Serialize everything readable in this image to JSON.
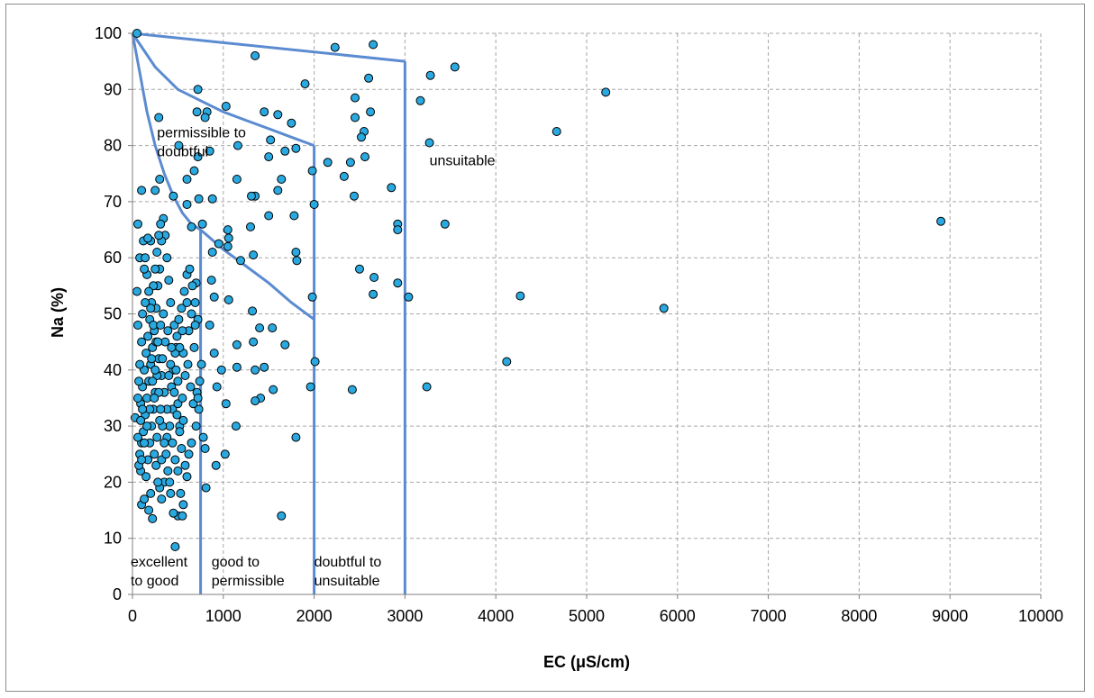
{
  "chart_data": {
    "type": "scatter",
    "title": "",
    "xlabel": "EC (μS/cm)",
    "ylabel": "Na (%)",
    "xlim": [
      0,
      10000
    ],
    "ylim": [
      0,
      100
    ],
    "x_ticks": [
      "0",
      "1000",
      "2000",
      "3000",
      "4000",
      "5000",
      "6000",
      "7000",
      "8000",
      "9000",
      "10000"
    ],
    "y_ticks": [
      "0",
      "10",
      "20",
      "30",
      "40",
      "50",
      "60",
      "70",
      "80",
      "90",
      "100"
    ],
    "grid": "dashed",
    "legend": "none",
    "marker_color": "#29a9e0",
    "marker_edge": "#000000",
    "boundary_color": "#5b8bd0",
    "zone_labels": [
      {
        "id": "excellent",
        "lines": [
          "excellent",
          "to good"
        ],
        "x": -20,
        "y": 5.0
      },
      {
        "id": "good",
        "lines": [
          "good to",
          "permissible"
        ],
        "x": 870,
        "y": 5.0
      },
      {
        "id": "doubtful",
        "lines": [
          "doubtful to",
          "unsuitable"
        ],
        "x": 2000,
        "y": 5.0
      },
      {
        "id": "permissible",
        "lines": [
          "permissible to",
          "doubtful"
        ],
        "x": 270,
        "y": 81.5
      },
      {
        "id": "unsuitable",
        "lines": [
          "unsuitable"
        ],
        "x": 3270,
        "y": 76.5
      }
    ],
    "boundaries": [
      {
        "name": "upper",
        "points": [
          [
            0,
            100
          ],
          [
            3000,
            95
          ]
        ]
      },
      {
        "name": "v3000",
        "points": [
          [
            3000,
            95
          ],
          [
            3000,
            0
          ]
        ]
      },
      {
        "name": "v2000",
        "points": [
          [
            2000,
            80
          ],
          [
            2000,
            0
          ]
        ]
      },
      {
        "name": "v750",
        "points": [
          [
            750,
            65
          ],
          [
            750,
            0
          ]
        ]
      },
      {
        "name": "curve80",
        "points": [
          [
            0,
            100
          ],
          [
            250,
            94
          ],
          [
            500,
            90
          ],
          [
            750,
            88
          ],
          [
            1000,
            86
          ],
          [
            1250,
            84.5
          ],
          [
            1500,
            83
          ],
          [
            1750,
            81.5
          ],
          [
            2000,
            80
          ]
        ]
      },
      {
        "name": "curve65",
        "points": [
          [
            0,
            100
          ],
          [
            80,
            93
          ],
          [
            160,
            86
          ],
          [
            250,
            80
          ],
          [
            350,
            75
          ],
          [
            450,
            71
          ],
          [
            550,
            68
          ],
          [
            650,
            66
          ],
          [
            750,
            65
          ]
        ]
      },
      {
        "name": "curve49",
        "points": [
          [
            750,
            65
          ],
          [
            1000,
            61.5
          ],
          [
            1250,
            58.5
          ],
          [
            1500,
            55.5
          ],
          [
            1750,
            52
          ],
          [
            2000,
            49
          ]
        ]
      }
    ],
    "points": [
      [
        50,
        100
      ],
      [
        2230,
        97.5
      ],
      [
        2650,
        98
      ],
      [
        1350,
        96
      ],
      [
        1900,
        91
      ],
      [
        2600,
        92
      ],
      [
        3280,
        92.5
      ],
      [
        3550,
        94
      ],
      [
        5210,
        89.5
      ],
      [
        1450,
        86
      ],
      [
        1600,
        85.5
      ],
      [
        1750,
        84
      ],
      [
        2450,
        88.5
      ],
      [
        2450,
        85
      ],
      [
        2620,
        86
      ],
      [
        3170,
        88
      ],
      [
        4670,
        82.5
      ],
      [
        3270,
        80.5
      ],
      [
        2550,
        82.5
      ],
      [
        2520,
        81.5
      ],
      [
        2150,
        77
      ],
      [
        2400,
        77
      ],
      [
        2330,
        74.5
      ],
      [
        2560,
        78
      ],
      [
        2440,
        71
      ],
      [
        2850,
        72.5
      ],
      [
        1980,
        75.5
      ],
      [
        1520,
        81
      ],
      [
        1500,
        78
      ],
      [
        1680,
        79
      ],
      [
        1800,
        79.5
      ],
      [
        1640,
        74
      ],
      [
        1600,
        72
      ],
      [
        1350,
        71
      ],
      [
        1310,
        71
      ],
      [
        1150,
        74
      ],
      [
        1160,
        80
      ],
      [
        1030,
        87
      ],
      [
        850,
        79
      ],
      [
        820,
        86
      ],
      [
        720,
        90
      ],
      [
        710,
        86
      ],
      [
        800,
        85
      ],
      [
        290,
        85
      ],
      [
        510,
        80
      ],
      [
        720,
        78
      ],
      [
        600,
        74
      ],
      [
        680,
        75.5
      ],
      [
        880,
        70.5
      ],
      [
        730,
        70.5
      ],
      [
        600,
        69.5
      ],
      [
        450,
        71
      ],
      [
        300,
        74
      ],
      [
        100,
        72
      ],
      [
        250,
        72
      ],
      [
        1780,
        67.5
      ],
      [
        1500,
        67.5
      ],
      [
        1300,
        65.5
      ],
      [
        2000,
        69.5
      ],
      [
        3440,
        66
      ],
      [
        2920,
        66
      ],
      [
        2920,
        65
      ],
      [
        8900,
        66.5
      ],
      [
        1050,
        65
      ],
      [
        1060,
        63.5
      ],
      [
        1050,
        62
      ],
      [
        950,
        62.5
      ],
      [
        1190,
        59.5
      ],
      [
        1330,
        60.5
      ],
      [
        1800,
        61
      ],
      [
        1810,
        59.5
      ],
      [
        880,
        61
      ],
      [
        770,
        66
      ],
      [
        650,
        65.5
      ],
      [
        700,
        55.5
      ],
      [
        1060,
        52.5
      ],
      [
        2660,
        56.5
      ],
      [
        2500,
        58
      ],
      [
        2920,
        55.5
      ],
      [
        2650,
        53.5
      ],
      [
        1980,
        53
      ],
      [
        3040,
        53
      ],
      [
        4270,
        53.2
      ],
      [
        5850,
        51
      ],
      [
        1320,
        50.5
      ],
      [
        1540,
        47.5
      ],
      [
        1680,
        44.5
      ],
      [
        1330,
        45
      ],
      [
        1400,
        47.5
      ],
      [
        1450,
        40.5
      ],
      [
        1350,
        40
      ],
      [
        1410,
        35
      ],
      [
        1350,
        34.5
      ],
      [
        1550,
        36.5
      ],
      [
        1150,
        40.5
      ],
      [
        1150,
        44.5
      ],
      [
        2010,
        41.5
      ],
      [
        1960,
        37
      ],
      [
        2420,
        36.5
      ],
      [
        3240,
        37
      ],
      [
        4120,
        41.5
      ],
      [
        1800,
        28
      ],
      [
        1640,
        14
      ],
      [
        1140,
        30
      ],
      [
        1020,
        25
      ],
      [
        930,
        37
      ],
      [
        1030,
        34
      ],
      [
        980,
        40
      ],
      [
        900,
        43
      ],
      [
        850,
        48
      ],
      [
        900,
        53
      ],
      [
        870,
        56
      ],
      [
        800,
        26
      ],
      [
        780,
        28
      ],
      [
        810,
        19
      ],
      [
        920,
        23
      ],
      [
        470,
        8.5
      ],
      [
        500,
        14
      ],
      [
        550,
        14
      ],
      [
        450,
        14.5
      ],
      [
        420,
        18
      ],
      [
        350,
        20
      ],
      [
        300,
        19
      ],
      [
        220,
        13.5
      ],
      [
        180,
        15
      ],
      [
        100,
        16
      ],
      [
        60,
        66
      ],
      [
        80,
        60
      ],
      [
        50,
        54
      ],
      [
        60,
        48
      ],
      [
        30,
        31.5
      ],
      [
        90,
        22
      ],
      [
        130,
        17
      ],
      [
        200,
        18
      ],
      [
        260,
        23
      ],
      [
        320,
        24
      ],
      [
        380,
        28
      ],
      [
        440,
        33
      ],
      [
        500,
        38
      ],
      [
        560,
        43
      ],
      [
        620,
        47
      ],
      [
        680,
        44
      ],
      [
        710,
        36
      ],
      [
        730,
        33
      ],
      [
        700,
        30
      ],
      [
        650,
        27
      ],
      [
        620,
        25
      ],
      [
        600,
        21
      ],
      [
        580,
        23
      ],
      [
        540,
        26
      ],
      [
        520,
        30
      ],
      [
        500,
        34
      ],
      [
        480,
        44
      ],
      [
        460,
        48
      ],
      [
        420,
        52
      ],
      [
        400,
        56
      ],
      [
        380,
        60
      ],
      [
        360,
        64
      ],
      [
        340,
        67
      ],
      [
        320,
        63
      ],
      [
        300,
        58
      ],
      [
        280,
        55
      ],
      [
        260,
        51
      ],
      [
        240,
        47
      ],
      [
        220,
        44
      ],
      [
        200,
        41
      ],
      [
        180,
        38
      ],
      [
        160,
        35
      ],
      [
        140,
        32
      ],
      [
        120,
        29
      ],
      [
        100,
        27
      ],
      [
        80,
        25
      ],
      [
        70,
        23
      ],
      [
        60,
        28
      ],
      [
        90,
        34
      ],
      [
        110,
        37
      ],
      [
        130,
        40
      ],
      [
        150,
        43
      ],
      [
        170,
        46
      ],
      [
        190,
        49
      ],
      [
        210,
        52
      ],
      [
        230,
        55
      ],
      [
        250,
        58
      ],
      [
        270,
        61
      ],
      [
        290,
        64
      ],
      [
        310,
        66
      ],
      [
        120,
        63
      ],
      [
        140,
        60
      ],
      [
        160,
        57
      ],
      [
        180,
        54
      ],
      [
        200,
        51
      ],
      [
        230,
        48
      ],
      [
        260,
        45
      ],
      [
        290,
        42
      ],
      [
        320,
        39
      ],
      [
        350,
        36
      ],
      [
        380,
        33
      ],
      [
        410,
        30
      ],
      [
        440,
        27
      ],
      [
        470,
        24
      ],
      [
        500,
        22
      ],
      [
        530,
        18
      ],
      [
        560,
        16
      ],
      [
        150,
        21
      ],
      [
        170,
        24
      ],
      [
        190,
        27
      ],
      [
        210,
        30
      ],
      [
        230,
        33
      ],
      [
        250,
        36
      ],
      [
        270,
        39
      ],
      [
        290,
        36
      ],
      [
        310,
        33
      ],
      [
        330,
        30
      ],
      [
        350,
        27
      ],
      [
        370,
        25
      ],
      [
        390,
        22
      ],
      [
        410,
        20
      ],
      [
        430,
        37
      ],
      [
        450,
        40
      ],
      [
        470,
        43
      ],
      [
        490,
        46
      ],
      [
        510,
        49
      ],
      [
        540,
        51
      ],
      [
        570,
        54
      ],
      [
        600,
        57
      ],
      [
        630,
        58
      ],
      [
        660,
        55
      ],
      [
        690,
        52
      ],
      [
        720,
        49
      ],
      [
        200,
        63
      ],
      [
        170,
        63.5
      ],
      [
        130,
        58
      ],
      [
        100,
        45
      ],
      [
        80,
        41
      ],
      [
        70,
        38
      ],
      [
        60,
        35
      ],
      [
        110,
        50
      ],
      [
        140,
        52
      ],
      [
        240,
        35
      ],
      [
        270,
        28
      ],
      [
        300,
        31
      ],
      [
        330,
        42
      ],
      [
        360,
        45
      ],
      [
        390,
        47
      ],
      [
        420,
        41
      ],
      [
        460,
        36
      ],
      [
        490,
        32
      ],
      [
        520,
        29
      ],
      [
        550,
        35
      ],
      [
        580,
        39
      ],
      [
        610,
        41
      ],
      [
        640,
        37
      ],
      [
        670,
        34
      ],
      [
        560,
        31
      ],
      [
        400,
        39
      ],
      [
        430,
        44
      ],
      [
        340,
        50
      ],
      [
        310,
        48
      ],
      [
        280,
        45
      ],
      [
        250,
        40
      ],
      [
        220,
        38
      ],
      [
        190,
        33
      ],
      [
        160,
        30
      ],
      [
        130,
        27
      ],
      [
        100,
        24
      ],
      [
        90,
        31
      ],
      [
        110,
        33
      ],
      [
        210,
        42
      ],
      [
        240,
        25
      ],
      [
        280,
        20
      ],
      [
        320,
        17
      ],
      [
        600,
        52
      ],
      [
        650,
        50
      ],
      [
        690,
        48
      ],
      [
        550,
        47
      ],
      [
        520,
        44
      ],
      [
        480,
        40
      ],
      [
        760,
        41
      ],
      [
        740,
        38
      ],
      [
        720,
        35
      ]
    ]
  }
}
